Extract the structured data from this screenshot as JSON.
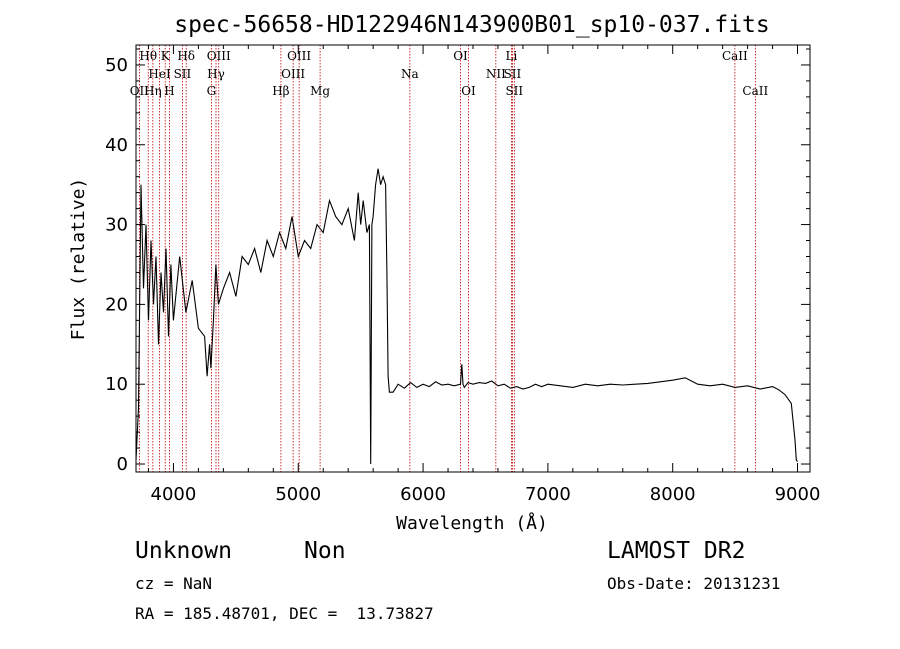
{
  "chart_data": {
    "type": "line",
    "title": "spec-56658-HD122946N143900B01_sp10-037.fits",
    "xlabel": "Wavelength (Å)",
    "ylabel": "Flux (relative)",
    "xlim": [
      3700,
      9100
    ],
    "ylim": [
      -1,
      52.5
    ],
    "x_ticks": [
      4000,
      5000,
      6000,
      7000,
      8000,
      9000
    ],
    "y_ticks": [
      0,
      10,
      20,
      30,
      40,
      50
    ],
    "grid": false,
    "series": [
      {
        "x": [
          3700,
          3720,
          3740,
          3760,
          3780,
          3800,
          3820,
          3840,
          3860,
          3880,
          3900,
          3920,
          3940,
          3960,
          3980,
          4000,
          4050,
          4100,
          4150,
          4200,
          4250,
          4270,
          4290,
          4300,
          4320,
          4340,
          4360,
          4400,
          4450,
          4500,
          4550,
          4600,
          4650,
          4700,
          4750,
          4800,
          4850,
          4900,
          4950,
          5000,
          5050,
          5100,
          5150,
          5200,
          5250,
          5300,
          5350,
          5400,
          5450,
          5480,
          5500,
          5520,
          5550,
          5570,
          5580,
          5590,
          5600,
          5620,
          5640,
          5660,
          5680,
          5700,
          5710,
          5720,
          5730,
          5760,
          5800,
          5850,
          5900,
          5950,
          6000,
          6050,
          6100,
          6150,
          6200,
          6250,
          6300,
          6310,
          6320,
          6330,
          6360,
          6400,
          6450,
          6500,
          6550,
          6600,
          6650,
          6700,
          6750,
          6800,
          6850,
          6900,
          6950,
          7000,
          7100,
          7200,
          7300,
          7400,
          7500,
          7600,
          7700,
          7800,
          7900,
          8000,
          8100,
          8200,
          8300,
          8400,
          8500,
          8600,
          8700,
          8800,
          8850,
          8900,
          8950,
          8980,
          8990,
          9000
        ],
        "y": [
          0.5,
          7,
          35,
          22,
          30,
          18,
          28,
          20,
          26,
          15,
          24,
          19,
          27,
          16,
          25,
          18,
          26,
          19,
          23,
          17,
          16,
          11,
          15,
          12,
          18,
          25,
          20,
          22,
          24,
          21,
          26,
          25,
          27,
          24,
          28,
          26,
          29,
          27,
          31,
          26,
          28,
          27,
          30,
          29,
          33,
          31,
          30,
          32,
          28,
          34,
          30,
          33,
          29,
          30,
          0,
          30,
          31,
          35,
          37,
          35,
          36,
          35,
          24,
          11,
          9,
          9,
          10,
          9.5,
          10.2,
          9.6,
          10,
          9.7,
          10.3,
          9.9,
          10,
          9.8,
          10,
          12.5,
          10,
          9.6,
          10.2,
          10,
          10.2,
          10.1,
          10.4,
          9.8,
          10,
          9.5,
          9.7,
          9.4,
          9.6,
          10,
          9.7,
          10,
          9.8,
          9.6,
          10,
          9.8,
          10,
          9.9,
          10,
          10.1,
          10.3,
          10.5,
          10.8,
          10,
          9.8,
          10,
          9.6,
          9.8,
          9.4,
          9.7,
          9.3,
          8.7,
          7.6,
          3,
          0.5,
          0.3
        ]
      }
    ],
    "line_markers": [
      {
        "label": "OII",
        "wavelength": 3727,
        "row": 2
      },
      {
        "label": "Hθ",
        "wavelength": 3798,
        "row": 0
      },
      {
        "label": "Hη",
        "wavelength": 3835,
        "row": 2
      },
      {
        "label": "HeI",
        "wavelength": 3889,
        "row": 1
      },
      {
        "label": "K",
        "wavelength": 3934,
        "row": 0
      },
      {
        "label": "H",
        "wavelength": 3968,
        "row": 2
      },
      {
        "label": "SII",
        "wavelength": 4072,
        "row": 1
      },
      {
        "label": "Hδ",
        "wavelength": 4102,
        "row": 0
      },
      {
        "label": "G",
        "wavelength": 4304,
        "row": 2
      },
      {
        "label": "Hγ",
        "wavelength": 4341,
        "row": 1
      },
      {
        "label": "OIII",
        "wavelength": 4363,
        "row": 0
      },
      {
        "label": "Hβ",
        "wavelength": 4861,
        "row": 2
      },
      {
        "label": "OIII",
        "wavelength": 4959,
        "row": 1
      },
      {
        "label": "OIII",
        "wavelength": 5007,
        "row": 0
      },
      {
        "label": "Mg",
        "wavelength": 5175,
        "row": 2
      },
      {
        "label": "Na",
        "wavelength": 5894,
        "row": 1
      },
      {
        "label": "OI",
        "wavelength": 6300,
        "row": 0
      },
      {
        "label": "OI",
        "wavelength": 6364,
        "row": 2
      },
      {
        "label": "NII",
        "wavelength": 6583,
        "row": 1
      },
      {
        "label": "Li",
        "wavelength": 6708,
        "row": 0
      },
      {
        "label": "SII",
        "wavelength": 6716,
        "row": 1
      },
      {
        "label": "SII",
        "wavelength": 6731,
        "row": 2
      },
      {
        "label": "CaII",
        "wavelength": 8498,
        "row": 0
      },
      {
        "label": "CaII",
        "wavelength": 8662,
        "row": 2
      }
    ],
    "colors": {
      "spectrum": "#000000",
      "marker_lines": "#c00000",
      "axes": "#000000"
    }
  },
  "footer": {
    "object_class": "Unknown",
    "subclass": "Non",
    "survey": "LAMOST DR2",
    "redshift": "cz = NaN",
    "obs_date": "Obs-Date: 20131231",
    "coords": "RA = 185.48701, DEC =  13.73827"
  }
}
